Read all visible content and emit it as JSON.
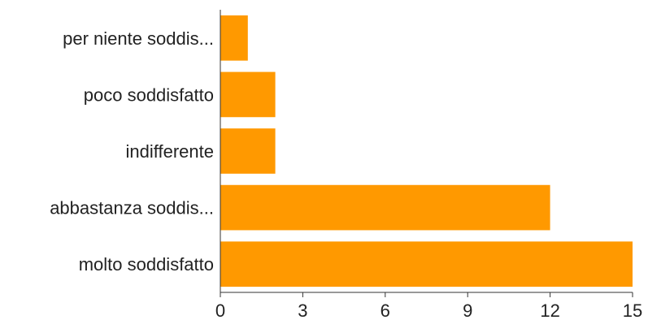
{
  "chart_data": {
    "type": "bar",
    "orientation": "horizontal",
    "categories": [
      "per niente soddis...",
      "poco soddisfatto",
      "indifferente",
      "abbastanza soddis...",
      "molto soddisfatto"
    ],
    "values": [
      1,
      2,
      2,
      12,
      15
    ],
    "xlim": [
      0,
      15
    ],
    "xticks": [
      "0",
      "3",
      "6",
      "9",
      "12",
      "15"
    ],
    "bar_color": "#ff9900",
    "grid": false,
    "legend": "none"
  }
}
